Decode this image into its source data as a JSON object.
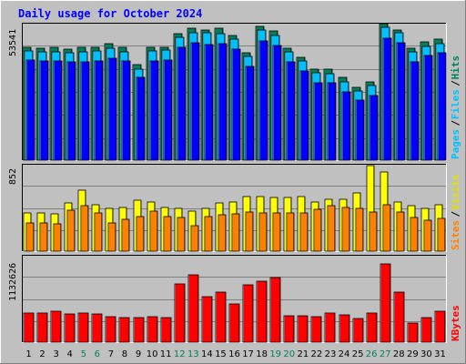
{
  "chart_data": [
    {
      "type": "bar",
      "panel": "hits-files-pages",
      "title": "Daily usage for October 2024",
      "categories": [
        "1",
        "2",
        "3",
        "4",
        "5",
        "6",
        "7",
        "8",
        "9",
        "10",
        "11",
        "12",
        "13",
        "14",
        "15",
        "16",
        "17",
        "18",
        "19",
        "20",
        "21",
        "22",
        "23",
        "24",
        "25",
        "26",
        "27",
        "28",
        "29",
        "30",
        "31"
      ],
      "weekend_days": [
        "5",
        "6",
        "12",
        "13",
        "19",
        "20",
        "26",
        "27"
      ],
      "ylabel_max": "53541",
      "ymax": 53541,
      "grid": true,
      "series": [
        {
          "name": "Hits",
          "color": "#00805c",
          "values": [
            45500,
            45100,
            45300,
            44800,
            45300,
            45300,
            46800,
            45300,
            38500,
            45500,
            45500,
            50800,
            53000,
            52500,
            53000,
            50200,
            43400,
            53800,
            52000,
            45000,
            41600,
            36800,
            36800,
            33200,
            29200,
            31500,
            55000,
            52500,
            45000,
            47600,
            48900
          ]
        },
        {
          "name": "Files",
          "color": "#00c0ff",
          "values": [
            44100,
            43800,
            43700,
            43200,
            43600,
            43900,
            45200,
            43700,
            36800,
            44000,
            44200,
            49600,
            51300,
            51200,
            51100,
            48800,
            41800,
            52400,
            50300,
            43600,
            40100,
            35200,
            35000,
            31600,
            27800,
            30000,
            53600,
            51300,
            43600,
            46000,
            47000
          ]
        },
        {
          "name": "Pages",
          "color": "#0000ff",
          "values": [
            40200,
            40000,
            39800,
            39600,
            39700,
            40100,
            41000,
            39800,
            33200,
            40100,
            40400,
            45500,
            47200,
            46500,
            47100,
            44600,
            37800,
            48200,
            46200,
            39700,
            36100,
            31300,
            31100,
            27600,
            24200,
            26000,
            49200,
            47400,
            39700,
            42000,
            43100
          ]
        }
      ],
      "legend": [
        "Pages",
        "Files",
        "Hits"
      ]
    },
    {
      "type": "bar",
      "panel": "visits-sites",
      "ylabel_max": "852",
      "ymax": 852,
      "grid": true,
      "series": [
        {
          "name": "Visits",
          "color": "#ffff00",
          "values": [
            390,
            390,
            380,
            500,
            630,
            480,
            440,
            450,
            520,
            510,
            450,
            440,
            410,
            440,
            500,
            510,
            560,
            560,
            550,
            550,
            560,
            510,
            530,
            530,
            600,
            880,
            810,
            510,
            470,
            440,
            480
          ]
        },
        {
          "name": "Sites",
          "color": "#ff8000",
          "values": [
            290,
            290,
            280,
            420,
            470,
            390,
            290,
            330,
            360,
            410,
            360,
            350,
            260,
            360,
            370,
            380,
            400,
            390,
            390,
            390,
            390,
            430,
            470,
            450,
            440,
            400,
            480,
            400,
            350,
            320,
            340
          ]
        }
      ],
      "legend": [
        "Sites",
        "Visits"
      ]
    },
    {
      "type": "bar",
      "panel": "kbytes",
      "ylabel_max": "1132626",
      "ymax": 1132626,
      "grid": true,
      "series": [
        {
          "name": "KBytes",
          "color": "#ff0000",
          "values": [
            400000,
            400000,
            420000,
            390000,
            400000,
            380000,
            350000,
            340000,
            340000,
            350000,
            340000,
            800000,
            920000,
            620000,
            690000,
            520000,
            780000,
            840000,
            880000,
            360000,
            360000,
            350000,
            400000,
            370000,
            320000,
            400000,
            1070000,
            690000,
            260000,
            340000,
            420000
          ]
        }
      ],
      "legend": [
        "KBytes"
      ]
    }
  ]
}
